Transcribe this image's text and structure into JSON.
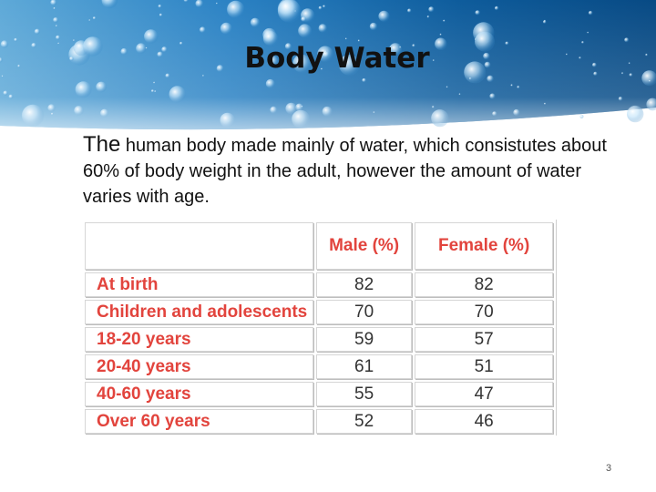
{
  "slide": {
    "title": "Body Water",
    "intro_lead": "The",
    "intro_rest": " human body made mainly of water, which consistutes about 60% of body weight in the adult, however the amount of water varies with age.",
    "page_number": "3"
  },
  "table": {
    "headers": [
      "",
      "Male (%)",
      "Female (%)"
    ],
    "rows": [
      {
        "label": "At birth",
        "male": "82",
        "female": "82"
      },
      {
        "label": "Children and adolescents",
        "male": "70",
        "female": "70"
      },
      {
        "label": "18-20 years",
        "male": "59",
        "female": "57"
      },
      {
        "label": "20-40 years",
        "male": "61",
        "female": "51"
      },
      {
        "label": "40-60 years",
        "male": "55",
        "female": "47"
      },
      {
        "label": "Over 60 years",
        "male": "52",
        "female": "46"
      }
    ]
  },
  "colors": {
    "accent": "#e2443d",
    "banner_dark": "#0a4f86",
    "banner_light": "#8cc6ec"
  },
  "decorations": {
    "banner_image": "water-bubbles-image"
  }
}
